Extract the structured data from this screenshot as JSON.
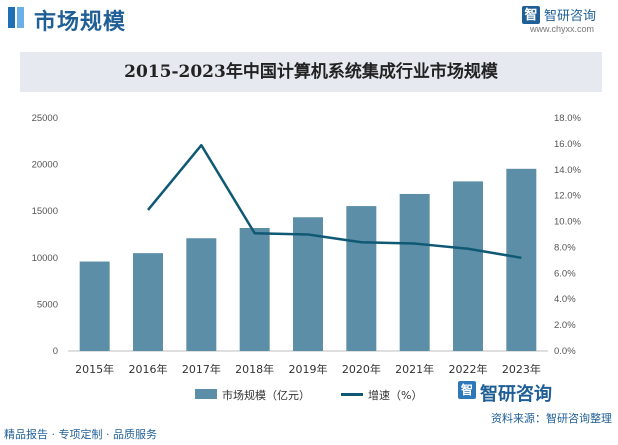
{
  "header": {
    "title": "市场规模",
    "logo_char": "智",
    "brand": "智研咨询",
    "url": "www.chyxx.com"
  },
  "chart_data": {
    "type": "bar+line",
    "title": "2015-2023年中国计算机系统集成行业市场规模",
    "categories": [
      "2015年",
      "2016年",
      "2017年",
      "2018年",
      "2019年",
      "2020年",
      "2021年",
      "2022年",
      "2023年"
    ],
    "series": [
      {
        "name": "市场规模（亿元）",
        "type": "bar",
        "axis": "left",
        "values": [
          9600,
          10500,
          12100,
          13200,
          14350,
          15550,
          16850,
          18200,
          19550
        ]
      },
      {
        "name": "增速（%）",
        "type": "line",
        "axis": "right",
        "values": [
          null,
          10.9,
          15.9,
          9.1,
          9.0,
          8.4,
          8.3,
          7.9,
          7.2
        ]
      }
    ],
    "y_left": {
      "min": 0,
      "max": 25000,
      "ticks": [
        "0",
        "5000",
        "10000",
        "15000",
        "20000",
        "25000"
      ]
    },
    "y_right": {
      "min": 0,
      "max": 18,
      "ticks": [
        "0.0%",
        "2.0%",
        "4.0%",
        "6.0%",
        "8.0%",
        "10.0%",
        "12.0%",
        "14.0%",
        "16.0%",
        "18.0%"
      ]
    },
    "legend_position": "bottom",
    "grid": false,
    "colors": {
      "bar": "#5d8ea8",
      "line": "#0f5975"
    }
  },
  "legend": {
    "bar_label": "市场规模（亿元）",
    "line_label": "增速（%）"
  },
  "footer": {
    "left_text": "精品报告 · 专项定制 · 品质服务",
    "source_text": "资料来源：智研咨询整理",
    "logo_char": "智",
    "brand": "智研咨询"
  }
}
